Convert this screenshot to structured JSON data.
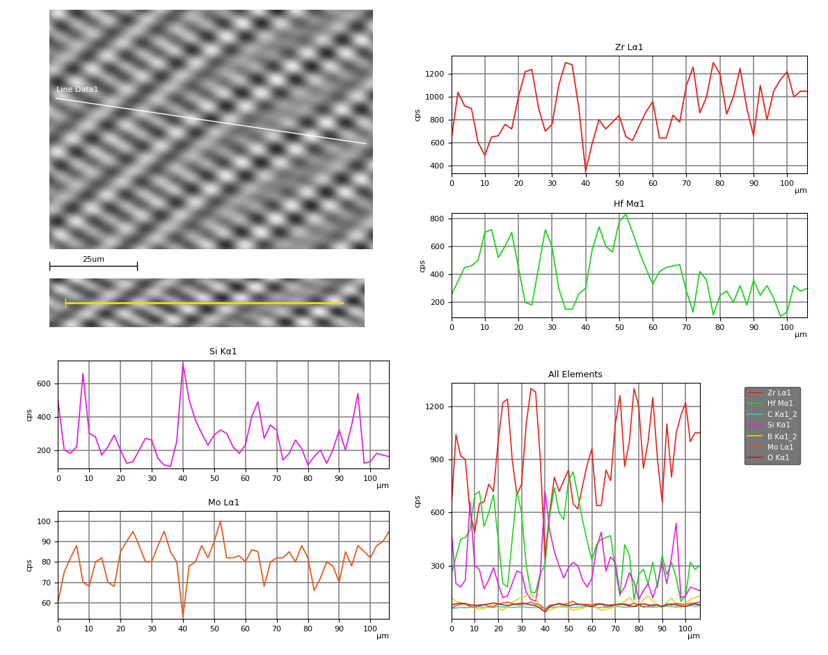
{
  "image": {
    "line_label": "Line Data1",
    "scale_bar": "25um"
  },
  "chart_data": [
    {
      "type": "line",
      "title": "Zr Lα1",
      "x_label": "μm",
      "y_label": "cps",
      "color": "#e8211b",
      "x": [
        0,
        2,
        4,
        6,
        8,
        10,
        12,
        14,
        16,
        18,
        20,
        22,
        24,
        26,
        28,
        30,
        32,
        34,
        36,
        38,
        40,
        42,
        44,
        46,
        48,
        50,
        52,
        54,
        56,
        58,
        60,
        62,
        64,
        66,
        68,
        70,
        72,
        74,
        76,
        78,
        80,
        82,
        84,
        86,
        88,
        90,
        92,
        94,
        96,
        98,
        100,
        102,
        104,
        106
      ],
      "values": [
        620,
        1040,
        920,
        900,
        600,
        490,
        650,
        660,
        760,
        720,
        1000,
        1220,
        1240,
        900,
        700,
        760,
        1100,
        1300,
        1280,
        900,
        350,
        600,
        800,
        720,
        780,
        840,
        650,
        620,
        750,
        870,
        960,
        640,
        640,
        840,
        780,
        1100,
        1260,
        860,
        1000,
        1300,
        1200,
        850,
        1000,
        1250,
        900,
        660,
        1100,
        800,
        1050,
        1150,
        1220,
        1000,
        1050,
        1050
      ],
      "xlim": [
        0,
        106
      ],
      "xticks": [
        0,
        10,
        20,
        30,
        40,
        50,
        60,
        70,
        80,
        90,
        100
      ],
      "ylim": [
        330,
        1360
      ],
      "yticks": [
        400,
        600,
        800,
        1000,
        1200
      ],
      "grid": true
    },
    {
      "type": "line",
      "title": "Hf Mα1",
      "x_label": "μm",
      "y_label": "cps",
      "color": "#1fd31f",
      "x": [
        0,
        2,
        4,
        6,
        8,
        10,
        12,
        14,
        16,
        18,
        20,
        22,
        24,
        26,
        28,
        30,
        32,
        34,
        36,
        38,
        40,
        42,
        44,
        46,
        48,
        50,
        52,
        54,
        56,
        58,
        60,
        62,
        64,
        66,
        68,
        70,
        72,
        74,
        76,
        78,
        80,
        82,
        84,
        86,
        88,
        90,
        92,
        94,
        96,
        98,
        100,
        102,
        104,
        106
      ],
      "values": [
        250,
        350,
        450,
        460,
        500,
        700,
        720,
        520,
        600,
        700,
        450,
        200,
        180,
        450,
        720,
        600,
        300,
        150,
        150,
        260,
        300,
        580,
        740,
        600,
        560,
        780,
        830,
        700,
        560,
        440,
        330,
        420,
        450,
        460,
        470,
        280,
        130,
        420,
        360,
        110,
        250,
        280,
        200,
        320,
        180,
        360,
        250,
        320,
        230,
        100,
        130,
        320,
        280,
        300
      ],
      "xlim": [
        0,
        106
      ],
      "xticks": [
        0,
        10,
        20,
        30,
        40,
        50,
        60,
        70,
        80,
        90,
        100
      ],
      "ylim": [
        90,
        840
      ],
      "yticks": [
        200,
        400,
        600,
        800
      ],
      "grid": true
    },
    {
      "type": "line",
      "title": "Si Kα1",
      "x_label": "μm",
      "y_label": "cps",
      "color": "#e020e0",
      "x": [
        0,
        2,
        4,
        6,
        8,
        10,
        12,
        14,
        16,
        18,
        20,
        22,
        24,
        26,
        28,
        30,
        32,
        34,
        36,
        38,
        40,
        42,
        44,
        46,
        48,
        50,
        52,
        54,
        56,
        58,
        60,
        62,
        64,
        66,
        68,
        70,
        72,
        74,
        76,
        78,
        80,
        82,
        84,
        86,
        88,
        90,
        92,
        94,
        96,
        98,
        100,
        102,
        104,
        106
      ],
      "values": [
        500,
        200,
        180,
        220,
        660,
        300,
        280,
        170,
        220,
        290,
        200,
        120,
        130,
        200,
        270,
        260,
        150,
        110,
        100,
        250,
        720,
        500,
        380,
        300,
        230,
        290,
        320,
        300,
        220,
        180,
        230,
        400,
        490,
        270,
        350,
        320,
        140,
        180,
        260,
        210,
        110,
        160,
        200,
        120,
        200,
        320,
        200,
        350,
        540,
        120,
        130,
        180,
        170,
        160
      ],
      "xlim": [
        0,
        106
      ],
      "xticks": [
        0,
        10,
        20,
        30,
        40,
        50,
        60,
        70,
        80,
        90,
        100
      ],
      "ylim": [
        90,
        740
      ],
      "yticks": [
        200,
        400,
        600
      ],
      "grid": true
    },
    {
      "type": "line",
      "title": "Mo Lα1",
      "x_label": "μm",
      "y_label": "cps",
      "color": "#e55a1c",
      "x": [
        0,
        2,
        4,
        6,
        8,
        10,
        12,
        14,
        16,
        18,
        20,
        22,
        24,
        26,
        28,
        30,
        32,
        34,
        36,
        38,
        40,
        42,
        44,
        46,
        48,
        50,
        52,
        54,
        56,
        58,
        60,
        62,
        64,
        66,
        68,
        70,
        72,
        74,
        76,
        78,
        80,
        82,
        84,
        86,
        88,
        90,
        92,
        94,
        96,
        98,
        100,
        102,
        104,
        106
      ],
      "values": [
        60,
        75,
        82,
        88,
        70,
        68,
        80,
        82,
        70,
        68,
        85,
        90,
        95,
        88,
        80,
        80,
        88,
        95,
        85,
        80,
        53,
        78,
        80,
        88,
        82,
        90,
        100,
        82,
        82,
        83,
        80,
        86,
        85,
        68,
        80,
        82,
        82,
        85,
        80,
        88,
        82,
        66,
        72,
        80,
        78,
        70,
        85,
        78,
        88,
        85,
        82,
        88,
        90,
        95
      ],
      "xlim": [
        0,
        106
      ],
      "xticks": [
        0,
        10,
        20,
        30,
        40,
        50,
        60,
        70,
        80,
        90,
        100
      ],
      "ylim": [
        52,
        105
      ],
      "yticks": [
        60,
        70,
        80,
        90,
        100
      ],
      "grid": true
    },
    {
      "type": "line",
      "title": "All Elements",
      "x_label": "μm",
      "y_label": "cps",
      "x": [
        0,
        2,
        4,
        6,
        8,
        10,
        12,
        14,
        16,
        18,
        20,
        22,
        24,
        26,
        28,
        30,
        32,
        34,
        36,
        38,
        40,
        42,
        44,
        46,
        48,
        50,
        52,
        54,
        56,
        58,
        60,
        62,
        64,
        66,
        68,
        70,
        72,
        74,
        76,
        78,
        80,
        82,
        84,
        86,
        88,
        90,
        92,
        94,
        96,
        98,
        100,
        102,
        104,
        106
      ],
      "series": [
        {
          "name": "Zr Lα1",
          "color": "#e8211b",
          "values": [
            620,
            1040,
            920,
            900,
            600,
            490,
            650,
            660,
            760,
            720,
            1000,
            1220,
            1240,
            900,
            700,
            760,
            1100,
            1300,
            1280,
            900,
            350,
            600,
            800,
            720,
            780,
            840,
            650,
            620,
            750,
            870,
            960,
            640,
            640,
            840,
            780,
            1100,
            1260,
            860,
            1000,
            1300,
            1200,
            850,
            1000,
            1250,
            900,
            660,
            1100,
            800,
            1050,
            1150,
            1220,
            1000,
            1050,
            1050
          ]
        },
        {
          "name": "Hf Mα1",
          "color": "#1fd31f",
          "values": [
            250,
            350,
            450,
            460,
            500,
            700,
            720,
            520,
            600,
            700,
            450,
            200,
            180,
            450,
            720,
            600,
            300,
            150,
            150,
            260,
            300,
            580,
            740,
            600,
            560,
            780,
            830,
            700,
            560,
            440,
            330,
            420,
            450,
            460,
            470,
            280,
            130,
            420,
            360,
            110,
            250,
            280,
            200,
            320,
            180,
            360,
            250,
            320,
            230,
            100,
            130,
            320,
            280,
            300
          ]
        },
        {
          "name": "C Kα1_2",
          "color": "#33cccc",
          "values": [
            60,
            62,
            65,
            63,
            66,
            64,
            68,
            65,
            67,
            66,
            70,
            68,
            66,
            65,
            67,
            69,
            66,
            64,
            66,
            68,
            60,
            65,
            67,
            70,
            68,
            66,
            65,
            67,
            69,
            70,
            68,
            66,
            65,
            67,
            68,
            70,
            69,
            66,
            68,
            70,
            72,
            70,
            68,
            66,
            68,
            70,
            72,
            70,
            68,
            70,
            72,
            74,
            73,
            75
          ]
        },
        {
          "name": "Si Kα1",
          "color": "#e020e0",
          "values": [
            500,
            200,
            180,
            220,
            660,
            300,
            280,
            170,
            220,
            290,
            200,
            120,
            130,
            200,
            270,
            260,
            150,
            110,
            100,
            250,
            720,
            500,
            380,
            300,
            230,
            290,
            320,
            300,
            220,
            180,
            230,
            400,
            490,
            270,
            350,
            320,
            140,
            180,
            260,
            210,
            110,
            160,
            200,
            120,
            200,
            320,
            200,
            350,
            540,
            120,
            130,
            180,
            170,
            160
          ]
        },
        {
          "name": "B Kα1_2",
          "color": "#e6d21a",
          "values": [
            120,
            100,
            90,
            80,
            70,
            60,
            55,
            60,
            70,
            80,
            60,
            50,
            70,
            90,
            110,
            120,
            130,
            140,
            120,
            60,
            40,
            50,
            60,
            70,
            80,
            60,
            50,
            55,
            60,
            70,
            80,
            60,
            50,
            55,
            60,
            70,
            80,
            100,
            120,
            90,
            70,
            110,
            130,
            100,
            80,
            60,
            90,
            120,
            80,
            60,
            90,
            110,
            120,
            130
          ]
        },
        {
          "name": "Mo Lα1",
          "color": "#e55a1c",
          "values": [
            60,
            75,
            82,
            88,
            70,
            68,
            80,
            82,
            70,
            68,
            85,
            90,
            95,
            88,
            80,
            80,
            88,
            95,
            85,
            80,
            53,
            78,
            80,
            88,
            82,
            90,
            100,
            82,
            82,
            83,
            80,
            86,
            85,
            68,
            80,
            82,
            82,
            85,
            80,
            88,
            82,
            66,
            72,
            80,
            78,
            70,
            85,
            78,
            88,
            85,
            82,
            88,
            90,
            95
          ]
        },
        {
          "name": "O Kα1",
          "color": "#a52a2a",
          "values": [
            80,
            85,
            90,
            85,
            80,
            78,
            75,
            80,
            85,
            90,
            85,
            80,
            75,
            80,
            85,
            90,
            85,
            80,
            75,
            60,
            40,
            70,
            80,
            85,
            80,
            75,
            80,
            85,
            80,
            75,
            70,
            80,
            85,
            80,
            75,
            80,
            85,
            80,
            75,
            70,
            80,
            85,
            80,
            75,
            80,
            70,
            80,
            85,
            80,
            75,
            70,
            80,
            85,
            80
          ]
        }
      ],
      "xlim": [
        0,
        106
      ],
      "xticks": [
        0,
        10,
        20,
        30,
        40,
        50,
        60,
        70,
        80,
        90,
        100
      ],
      "ylim": [
        0,
        1330
      ],
      "yticks": [
        300,
        600,
        900,
        1200
      ],
      "grid": true,
      "legend": "upper right"
    }
  ]
}
